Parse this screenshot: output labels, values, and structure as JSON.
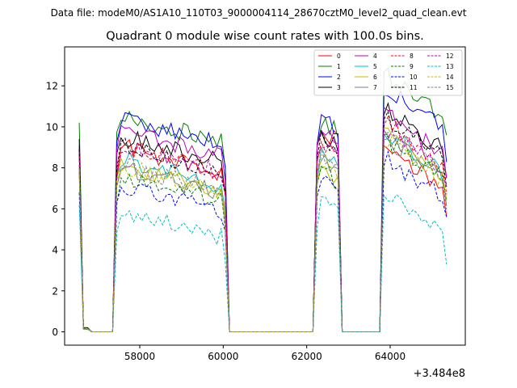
{
  "figure": {
    "suptitle": "Data file: modeM0/AS1A10_110T03_9000004114_28670cztM0_level2_quad_clean.evt",
    "offset_label": "+3.484e8"
  },
  "chart_data": {
    "type": "line",
    "title": "Quadrant 0 module wise count rates with 100.0s bins.",
    "xlabel": "",
    "ylabel": "",
    "x_offset": 348400000,
    "xlim": [
      56200,
      65800
    ],
    "ylim": [
      -0.65,
      13.9
    ],
    "xticks": [
      58000,
      60000,
      62000,
      64000
    ],
    "xtick_labels": [
      "58000",
      "60000",
      "62000",
      "64000"
    ],
    "yticks": [
      0,
      2,
      4,
      6,
      8,
      10,
      12
    ],
    "ytick_labels": [
      "0",
      "2",
      "4",
      "6",
      "8",
      "10",
      "12"
    ],
    "grid": false,
    "legend_position": "top-right",
    "legend_columns": 4,
    "series": [
      {
        "name": "0",
        "color": "#ff0000",
        "dash": "solid",
        "levels": [
          8.8,
          9.1,
          10.1,
          9.2
        ]
      },
      {
        "name": "1",
        "color": "#008000",
        "dash": "solid",
        "levels": [
          10.2,
          10.6,
          10.6,
          12.7
        ]
      },
      {
        "name": "2",
        "color": "#0000ff",
        "dash": "solid",
        "levels": [
          9.1,
          10.5,
          10.6,
          12.0
        ]
      },
      {
        "name": "3",
        "color": "#000000",
        "dash": "solid",
        "levels": [
          9.4,
          9.6,
          10.0,
          11.0
        ]
      },
      {
        "name": "4",
        "color": "#bf00bf",
        "dash": "solid",
        "levels": [
          8.9,
          9.9,
          10.3,
          10.8
        ]
      },
      {
        "name": "5",
        "color": "#00bfbf",
        "dash": "solid",
        "levels": [
          8.1,
          8.5,
          8.9,
          9.9
        ]
      },
      {
        "name": "6",
        "color": "#bfbf00",
        "dash": "solid",
        "levels": [
          7.9,
          8.2,
          8.4,
          9.7
        ]
      },
      {
        "name": "7",
        "color": "#808080",
        "dash": "solid",
        "levels": [
          7.8,
          8.1,
          8.6,
          9.6
        ]
      },
      {
        "name": "8",
        "color": "#ff0000",
        "dash": "dashed",
        "levels": [
          8.6,
          9.1,
          9.5,
          10.3
        ]
      },
      {
        "name": "9",
        "color": "#008000",
        "dash": "dashed",
        "levels": [
          7.9,
          7.7,
          8.2,
          9.5
        ]
      },
      {
        "name": "10",
        "color": "#0000ff",
        "dash": "dashed",
        "levels": [
          6.8,
          7.2,
          7.8,
          8.6
        ]
      },
      {
        "name": "11",
        "color": "#000000",
        "dash": "dashed",
        "levels": [
          8.9,
          9.1,
          9.6,
          10.6
        ]
      },
      {
        "name": "12",
        "color": "#bf00bf",
        "dash": "dashed",
        "levels": [
          8.4,
          9.2,
          9.6,
          10.1
        ]
      },
      {
        "name": "13",
        "color": "#00bfbf",
        "dash": "dashed",
        "levels": [
          6.2,
          6.0,
          6.7,
          6.9
        ]
      },
      {
        "name": "14",
        "color": "#bfbf00",
        "dash": "dashed",
        "levels": [
          7.9,
          8.2,
          8.7,
          9.5
        ]
      },
      {
        "name": "15",
        "color": "#808080",
        "dash": "dashed",
        "levels": [
          8.0,
          8.2,
          8.8,
          9.8
        ]
      }
    ]
  }
}
